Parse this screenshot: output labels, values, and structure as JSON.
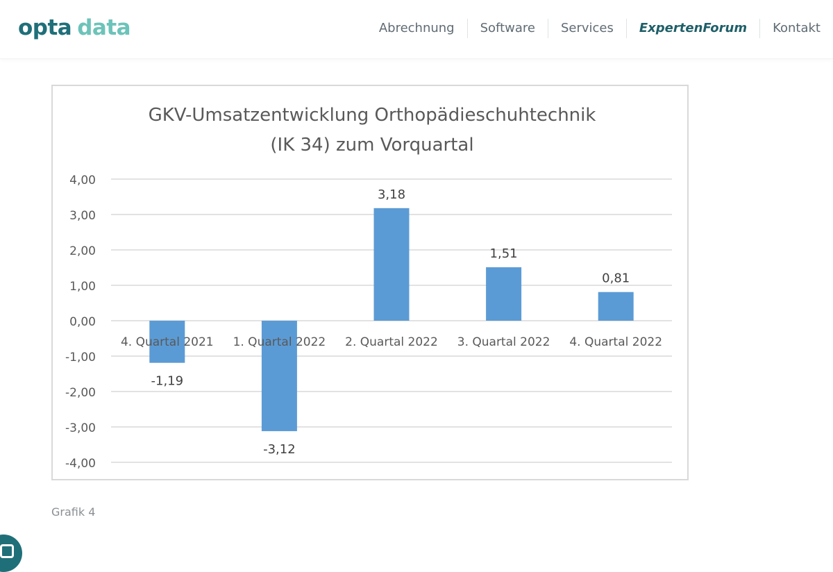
{
  "header": {
    "logo": {
      "part1": "opta",
      "part2": "data"
    },
    "nav": [
      {
        "label": "Abrechnung",
        "active": false
      },
      {
        "label": "Software",
        "active": false
      },
      {
        "label": "Services",
        "active": false
      },
      {
        "label": "ExpertenForum",
        "active": true
      },
      {
        "label": "Kontakt",
        "active": false
      }
    ]
  },
  "chart_data": {
    "type": "bar",
    "title": "GKV-Umsatzentwicklung Orthopädieschuhtechnik",
    "subtitle": "(IK 34) zum Vorquartal",
    "categories": [
      "4. Quartal 2021",
      "1. Quartal 2022",
      "2. Quartal 2022",
      "3. Quartal 2022",
      "4. Quartal 2022"
    ],
    "values": [
      -1.19,
      -3.12,
      3.18,
      1.51,
      0.81
    ],
    "data_labels": [
      "-1,19",
      "-3,12",
      "3,18",
      "1,51",
      "0,81"
    ],
    "ylim": [
      -4,
      4
    ],
    "yticks": [
      4,
      3,
      2,
      1,
      0,
      -1,
      -2,
      -3,
      -4
    ],
    "ytick_labels": [
      "4,00",
      "3,00",
      "2,00",
      "1,00",
      "0,00",
      "-1,00",
      "-2,00",
      "-3,00",
      "-4,00"
    ],
    "grid": true,
    "legend": "none",
    "bar_color": "#5b9bd5",
    "xlabel": "",
    "ylabel": ""
  },
  "caption": "Grafik 4",
  "colors": {
    "brand_dark": "#1f6f79",
    "brand_light": "#6cc3b9"
  }
}
